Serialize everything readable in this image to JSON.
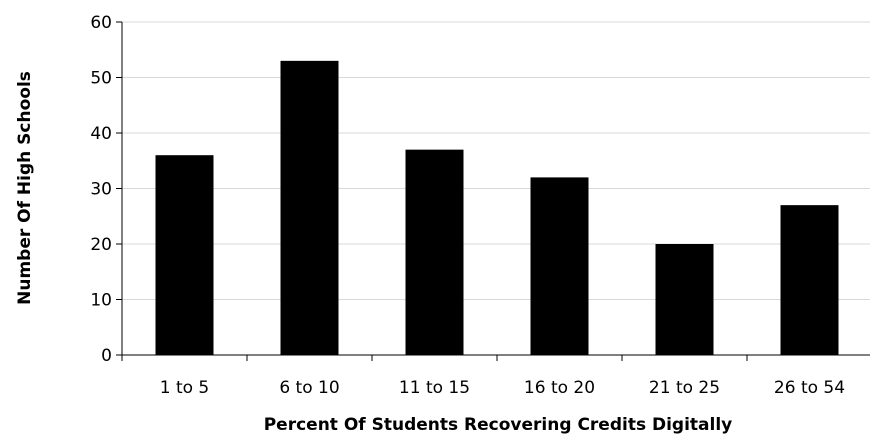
{
  "chart_data": {
    "type": "bar",
    "categories": [
      "1 to 5",
      "6 to 10",
      "11 to 15",
      "16 to 20",
      "21 to 25",
      "26 to 54"
    ],
    "values": [
      36,
      53,
      37,
      32,
      20,
      27
    ],
    "title": "",
    "xlabel": "Percent Of Students Recovering Credits Digitally",
    "ylabel": "Number Of High Schools",
    "ylim": [
      0,
      60
    ],
    "yticks": [
      0,
      10,
      20,
      30,
      40,
      50,
      60
    ],
    "grid": true,
    "legend": "none",
    "bar_color": "#000000",
    "grid_color": "#d9d9d9",
    "axis_color": "#000000"
  }
}
